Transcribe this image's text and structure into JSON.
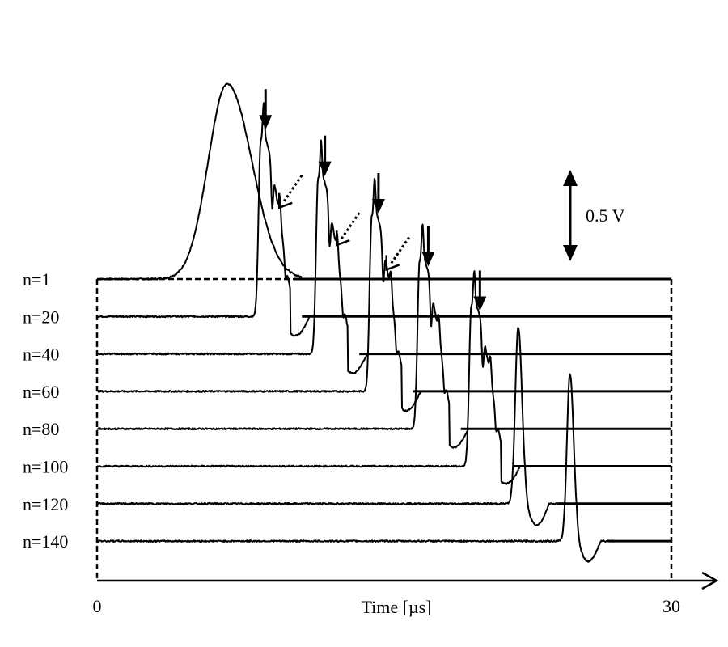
{
  "chart_data": {
    "type": "line",
    "title": "",
    "xlabel": "Time [µs]",
    "ylabel": "",
    "xlim": [
      0,
      30
    ],
    "x_tick_labels": [
      "0",
      "30"
    ],
    "scale_bar_label": "0.5 V",
    "scale_bar_volts": 0.5,
    "series": [
      {
        "name": "n=1",
        "label": "n=1",
        "peaks": [
          {
            "t": 6.8,
            "amp": 1.05,
            "width": 1.6,
            "shape": "gauss"
          }
        ]
      },
      {
        "name": "n=20",
        "label": "n=20",
        "peaks": [
          {
            "t": 8.7,
            "amp": 1.15,
            "shape": "multi"
          }
        ]
      },
      {
        "name": "n=40",
        "label": "n=40",
        "peaks": [
          {
            "t": 11.7,
            "amp": 1.15,
            "shape": "multi"
          }
        ]
      },
      {
        "name": "n=60",
        "label": "n=60",
        "peaks": [
          {
            "t": 14.5,
            "amp": 1.15,
            "shape": "multi"
          }
        ]
      },
      {
        "name": "n=80",
        "label": "n=80",
        "peaks": [
          {
            "t": 17.0,
            "amp": 1.1,
            "shape": "multi"
          }
        ]
      },
      {
        "name": "n=100",
        "label": "n=100",
        "peaks": [
          {
            "t": 19.7,
            "amp": 1.05,
            "shape": "multi"
          }
        ]
      },
      {
        "name": "n=120",
        "label": "n=120",
        "peaks": [
          {
            "t": 22.0,
            "amp": 0.95,
            "shape": "single"
          }
        ]
      },
      {
        "name": "n=140",
        "label": "n=140",
        "peaks": [
          {
            "t": 24.7,
            "amp": 0.9,
            "shape": "single"
          }
        ]
      }
    ],
    "annotations": [
      {
        "type": "solid-arrow",
        "series": "n=20",
        "t": 8.8
      },
      {
        "type": "dotted-arrow",
        "series": "n=20",
        "t": 9.6
      },
      {
        "type": "solid-arrow",
        "series": "n=40",
        "t": 11.9
      },
      {
        "type": "dotted-arrow",
        "series": "n=40",
        "t": 12.6
      },
      {
        "type": "solid-arrow",
        "series": "n=60",
        "t": 14.7
      },
      {
        "type": "dotted-arrow",
        "series": "n=60",
        "t": 15.2
      },
      {
        "type": "solid-arrow",
        "series": "n=80",
        "t": 17.3
      },
      {
        "type": "solid-arrow",
        "series": "n=100",
        "t": 20.0
      }
    ]
  }
}
